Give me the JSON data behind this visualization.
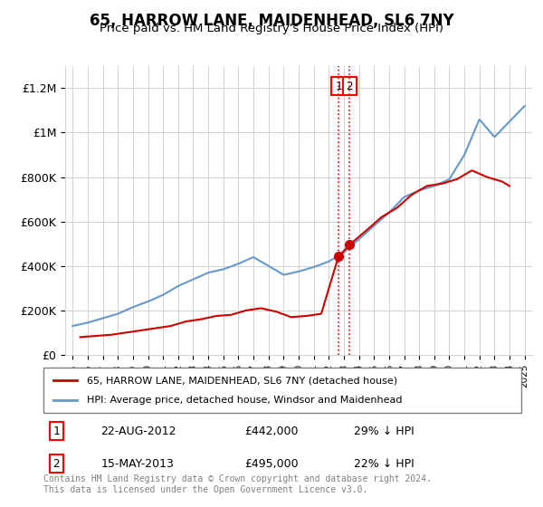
{
  "title": "65, HARROW LANE, MAIDENHEAD, SL6 7NY",
  "subtitle": "Price paid vs. HM Land Registry's House Price Index (HPI)",
  "legend_line1": "65, HARROW LANE, MAIDENHEAD, SL6 7NY (detached house)",
  "legend_line2": "HPI: Average price, detached house, Windsor and Maidenhead",
  "footnote": "Contains HM Land Registry data © Crown copyright and database right 2024.\nThis data is licensed under the Open Government Licence v3.0.",
  "transaction1_label": "1",
  "transaction1_date": "22-AUG-2012",
  "transaction1_price": "£442,000",
  "transaction1_hpi": "29% ↓ HPI",
  "transaction1_x": 2012.64,
  "transaction1_y": 442000,
  "transaction2_label": "2",
  "transaction2_date": "15-MAY-2013",
  "transaction2_price": "£495,000",
  "transaction2_hpi": "22% ↓ HPI",
  "transaction2_x": 2013.37,
  "transaction2_y": 495000,
  "red_line_color": "#cc0000",
  "blue_line_color": "#6699cc",
  "ylim_min": 0,
  "ylim_max": 1300000,
  "yticks": [
    0,
    200000,
    400000,
    600000,
    800000,
    1000000,
    1200000
  ],
  "ytick_labels": [
    "£0",
    "£200K",
    "£400K",
    "£600K",
    "£800K",
    "£1M",
    "£1.2M"
  ],
  "xlim_min": 1994.5,
  "xlim_max": 2025.5,
  "years": [
    1995,
    1996,
    1997,
    1998,
    1999,
    2000,
    2001,
    2002,
    2003,
    2004,
    2005,
    2006,
    2007,
    2008,
    2009,
    2010,
    2011,
    2012,
    2013,
    2014,
    2015,
    2016,
    2017,
    2018,
    2019,
    2020,
    2021,
    2022,
    2023,
    2024,
    2025
  ],
  "hpi_values": [
    130000,
    145000,
    165000,
    185000,
    215000,
    240000,
    270000,
    310000,
    340000,
    370000,
    385000,
    410000,
    440000,
    400000,
    360000,
    375000,
    395000,
    420000,
    460000,
    520000,
    580000,
    640000,
    710000,
    740000,
    760000,
    790000,
    900000,
    1060000,
    980000,
    1050000,
    1120000
  ],
  "price_paid_x": [
    1995.5,
    1996.5,
    1997.5,
    1998.5,
    1999.5,
    2000.5,
    2001.5,
    2002.5,
    2003.5,
    2004.5,
    2005.5,
    2006.5,
    2007.5,
    2008.5,
    2009.5,
    2010.5,
    2011.5,
    2012.64,
    2013.37,
    2014.5,
    2015.5,
    2016.5,
    2017.5,
    2018.5,
    2019.5,
    2020.5,
    2021.5,
    2022.5,
    2023.5,
    2024.0
  ],
  "price_paid_values": [
    80000,
    85000,
    90000,
    100000,
    110000,
    120000,
    130000,
    150000,
    160000,
    175000,
    180000,
    200000,
    210000,
    195000,
    170000,
    175000,
    185000,
    442000,
    495000,
    560000,
    620000,
    660000,
    720000,
    760000,
    770000,
    790000,
    830000,
    800000,
    780000,
    760000
  ]
}
